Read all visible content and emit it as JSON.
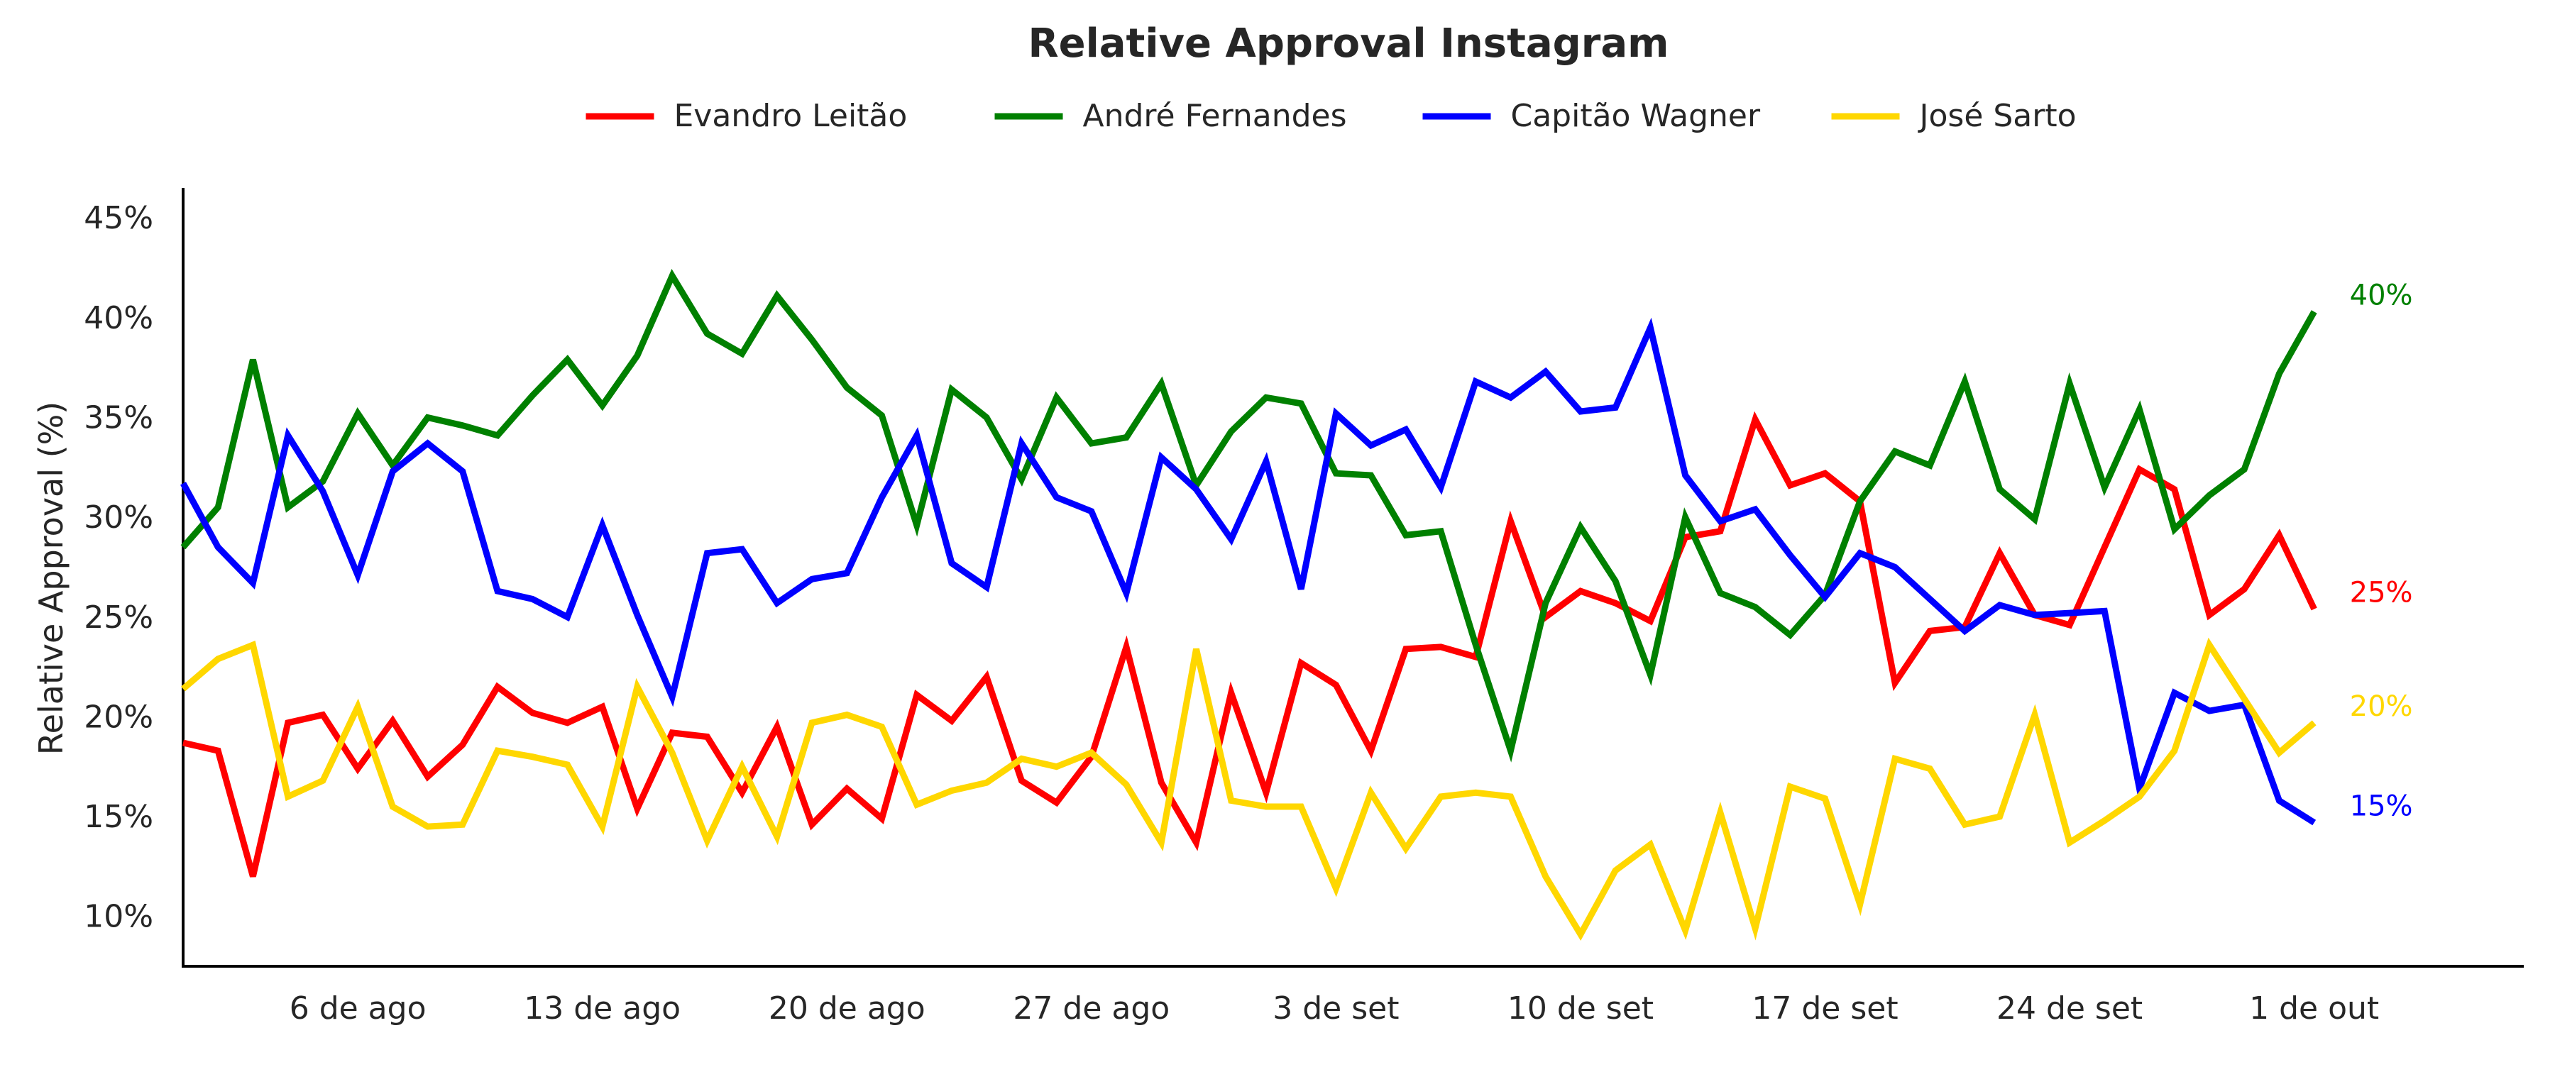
{
  "chart_data": {
    "type": "line",
    "title": "Relative Approval Instagram",
    "xlabel": "",
    "ylabel": "Relative Approval (%)",
    "x_start": "2024-08-01",
    "x_end": "2024-10-01",
    "xlim": [
      "2024-08-01",
      "2024-10-07"
    ],
    "ylim": [
      7.5,
      46.5
    ],
    "x_ticks": [
      {
        "date": "2024-08-06",
        "label": "6 de ago"
      },
      {
        "date": "2024-08-13",
        "label": "13 de ago"
      },
      {
        "date": "2024-08-20",
        "label": "20 de ago"
      },
      {
        "date": "2024-08-27",
        "label": "27 de ago"
      },
      {
        "date": "2024-09-03",
        "label": "3 de set"
      },
      {
        "date": "2024-09-10",
        "label": "10 de set"
      },
      {
        "date": "2024-09-17",
        "label": "17 de set"
      },
      {
        "date": "2024-09-24",
        "label": "24 de set"
      },
      {
        "date": "2024-10-01",
        "label": "1 de out"
      }
    ],
    "y_ticks": [
      {
        "value": 10,
        "label": "10%"
      },
      {
        "value": 15,
        "label": "15%"
      },
      {
        "value": 20,
        "label": "20%"
      },
      {
        "value": 25,
        "label": "25%"
      },
      {
        "value": 30,
        "label": "30%"
      },
      {
        "value": 35,
        "label": "35%"
      },
      {
        "value": 40,
        "label": "40%"
      },
      {
        "value": 45,
        "label": "45%"
      }
    ],
    "legend_position": "top-center",
    "grid": false,
    "series": [
      {
        "name": "Evandro Leitão",
        "color": "#ff0000",
        "end_label": "25%",
        "values": [
          18.7,
          18.3,
          12.0,
          19.7,
          20.1,
          17.4,
          19.8,
          17.0,
          18.6,
          21.5,
          20.2,
          19.7,
          20.5,
          15.4,
          19.2,
          19.0,
          16.2,
          19.5,
          14.6,
          16.4,
          14.9,
          21.1,
          19.8,
          22.0,
          16.8,
          15.7,
          18.0,
          23.5,
          16.7,
          13.7,
          21.2,
          16.2,
          22.7,
          21.6,
          18.3,
          23.4,
          23.5,
          23.0,
          29.8,
          25.0,
          26.3,
          25.7,
          24.8,
          29.0,
          29.3,
          34.9,
          31.6,
          32.2,
          30.8,
          21.7,
          24.3,
          24.5,
          28.2,
          25.1,
          24.6,
          28.5,
          32.4,
          31.4,
          25.1,
          26.4,
          29.1,
          25.4
        ]
      },
      {
        "name": "André Fernandes",
        "color": "#008000",
        "end_label": "40%",
        "values": [
          28.5,
          30.5,
          37.9,
          30.5,
          31.8,
          35.2,
          32.6,
          35.0,
          34.6,
          34.1,
          36.1,
          37.9,
          35.6,
          38.1,
          42.1,
          39.2,
          38.2,
          41.1,
          38.9,
          36.5,
          35.1,
          29.6,
          36.4,
          35.0,
          31.9,
          36.0,
          33.7,
          34.0,
          36.7,
          31.6,
          34.3,
          36.0,
          35.7,
          32.2,
          32.1,
          29.1,
          29.3,
          23.6,
          18.3,
          25.7,
          29.5,
          26.8,
          22.1,
          30.0,
          26.2,
          25.5,
          24.1,
          26.1,
          30.8,
          33.3,
          32.6,
          36.8,
          31.4,
          29.9,
          36.7,
          31.5,
          35.4,
          29.4,
          31.1,
          32.4,
          37.2,
          40.3
        ]
      },
      {
        "name": "Capitão Wagner",
        "color": "#0000ff",
        "end_label": "15%",
        "values": [
          31.7,
          28.5,
          26.7,
          34.1,
          31.3,
          27.1,
          32.3,
          33.7,
          32.3,
          26.3,
          25.9,
          25.0,
          29.6,
          25.1,
          21.0,
          28.2,
          28.4,
          25.7,
          26.9,
          27.2,
          31.0,
          34.1,
          27.7,
          26.5,
          33.7,
          31.0,
          30.3,
          26.2,
          33.0,
          31.4,
          28.9,
          32.8,
          26.4,
          35.2,
          33.6,
          34.4,
          31.5,
          36.8,
          36.0,
          37.3,
          35.3,
          35.5,
          39.5,
          32.1,
          29.8,
          30.4,
          28.1,
          26.0,
          28.2,
          27.5,
          25.9,
          24.3,
          25.6,
          25.1,
          25.2,
          25.3,
          16.4,
          21.2,
          20.3,
          20.6,
          15.8,
          14.7
        ]
      },
      {
        "name": "José Sarto",
        "color": "#ffd700",
        "end_label": "20%",
        "values": [
          21.4,
          22.9,
          23.6,
          16.0,
          16.8,
          20.5,
          15.5,
          14.5,
          14.6,
          18.3,
          18.0,
          17.6,
          14.5,
          21.5,
          18.2,
          13.8,
          17.5,
          14.0,
          19.7,
          20.1,
          19.5,
          15.6,
          16.3,
          16.7,
          17.9,
          17.5,
          18.2,
          16.6,
          13.7,
          23.4,
          15.8,
          15.5,
          15.5,
          11.4,
          16.2,
          13.4,
          16.0,
          16.2,
          16.0,
          12.0,
          9.1,
          12.3,
          13.6,
          9.3,
          15.2,
          9.4,
          16.5,
          15.9,
          10.6,
          17.9,
          17.4,
          14.6,
          15.0,
          20.1,
          13.7,
          14.8,
          16.0,
          18.3,
          23.6,
          20.9,
          18.2,
          19.7
        ]
      }
    ]
  }
}
